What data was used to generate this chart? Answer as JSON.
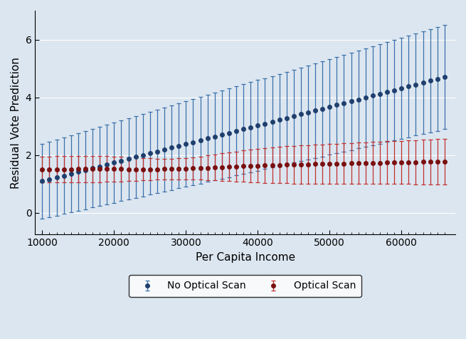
{
  "x_start": 10000,
  "x_end": 66000,
  "x_step": 1000,
  "ylim": [
    -0.75,
    7.0
  ],
  "yticks": [
    0,
    2,
    4,
    6
  ],
  "xlim": [
    9000,
    67500
  ],
  "xticks": [
    10000,
    20000,
    30000,
    40000,
    50000,
    60000
  ],
  "xlabel": "Per Capita Income",
  "ylabel": "Residual Vote Prediction",
  "no_scan_color": "#1f3f6e",
  "scan_color": "#7a1010",
  "no_scan_line_color": "#3a6faa",
  "scan_line_color": "#c03030",
  "background_color": "#dce6f0",
  "legend_labels": [
    "No Optical Scan",
    "Optical Scan"
  ],
  "marker_size": 4.0,
  "capsize": 2.0,
  "linewidth": 1.0,
  "elinewidth": 0.9,
  "capthick": 0.9
}
